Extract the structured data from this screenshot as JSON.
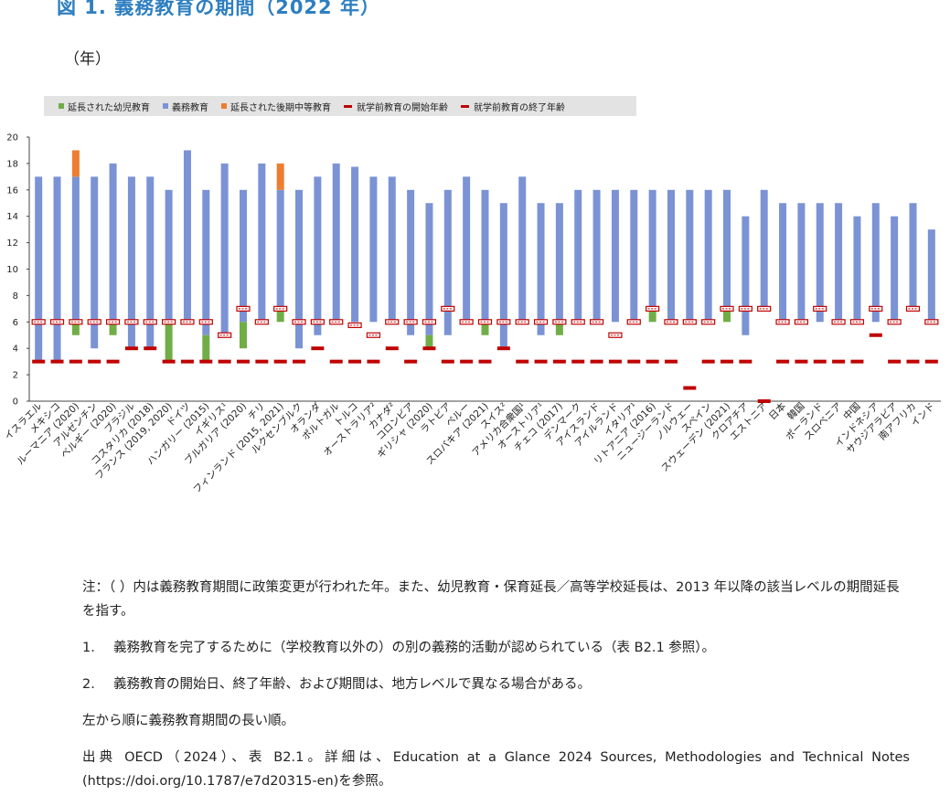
{
  "title": "図 1.  義務教育の期間（2022 年）",
  "unit_label": "（年）",
  "legend": [
    {
      "label": "延長された幼児教育",
      "color": "#70ad47",
      "kind": "box"
    },
    {
      "label": "義務教育",
      "color": "#7b93d4",
      "kind": "box"
    },
    {
      "label": "延長された後期中等教育",
      "color": "#ed7d31",
      "kind": "box"
    },
    {
      "label": "就学前教育の開始年齢",
      "color": "#c00000",
      "kind": "line"
    },
    {
      "label": "就学前教育の終了年齢",
      "color": "#c00000",
      "kind": "line"
    }
  ],
  "chart_data": {
    "type": "bar",
    "stacked": true,
    "ylim": [
      0,
      20
    ],
    "yticks": [
      0,
      2,
      4,
      6,
      8,
      10,
      12,
      14,
      16,
      18,
      20
    ],
    "categories": [
      "イスラエル",
      "メキシコ",
      "ルーマニア (2020)",
      "アルゼンチン",
      "ベルギー (2020)",
      "ブラジル",
      "コスタリカ (2018)",
      "フランス (2019, 2020)",
      "ドイツ",
      "ハンガリー (2015)",
      "イギリス¹",
      "ブルガリア (2020)",
      "チリ",
      "フィンランド (2015, 2021)",
      "ルクセンブルク",
      "オランダ",
      "ポルトガル",
      "トルコ",
      "オーストラリア²",
      "カナダ²",
      "コロンビア",
      "ギリシャ (2020)",
      "ラトビア",
      "ペルー",
      "スロバキア (2021)",
      "スイス²",
      "アメリカ合衆国¹",
      "オーストリア¹",
      "チェコ (2017)",
      "デンマーク",
      "アイスランド",
      "アイルランド",
      "イタリア¹",
      "リトアニア (2016)",
      "ニュージーランド",
      "ノルウェー",
      "スペイン",
      "スウェーデン (2021)",
      "クロアチア",
      "エストニア",
      "日本",
      "韓国",
      "ポーランド",
      "スロベニア",
      "中国",
      "インドネシア",
      "サウジアラビア",
      "南アフリカ",
      "インド"
    ],
    "compulsory_start": [
      3,
      3,
      6,
      4,
      6,
      4,
      4,
      6,
      6,
      5,
      5,
      6,
      6,
      7,
      4,
      5,
      6,
      6,
      6,
      6,
      5,
      5,
      5,
      6,
      6,
      4,
      6,
      5,
      6,
      6,
      6,
      6,
      6,
      7,
      6,
      6,
      6,
      7,
      5,
      7,
      6,
      6,
      6,
      6,
      6,
      6,
      6,
      7,
      6
    ],
    "compulsory_end": [
      17,
      17,
      17,
      17,
      18,
      17,
      17,
      16,
      19,
      16,
      18,
      16,
      18,
      16,
      16,
      17,
      18,
      17.75,
      17,
      17,
      16,
      15,
      16,
      17,
      16,
      15,
      17,
      15,
      15,
      16,
      16,
      16,
      16,
      16,
      16,
      16,
      16,
      16,
      14,
      16,
      15,
      15,
      15,
      15,
      14,
      15,
      14,
      15,
      13
    ],
    "extended_ece_from": [
      null,
      null,
      5,
      null,
      5,
      null,
      4,
      3,
      null,
      3,
      null,
      4,
      null,
      6,
      null,
      null,
      null,
      null,
      null,
      null,
      null,
      4,
      null,
      null,
      5,
      null,
      null,
      null,
      5,
      null,
      null,
      null,
      null,
      6,
      null,
      null,
      null,
      6,
      null,
      null,
      null,
      null,
      null,
      null,
      null,
      null,
      null,
      null,
      null
    ],
    "extended_upper_to": [
      null,
      null,
      19,
      null,
      null,
      null,
      null,
      null,
      null,
      null,
      null,
      null,
      null,
      18,
      null,
      null,
      null,
      null,
      null,
      null,
      null,
      null,
      null,
      null,
      null,
      null,
      null,
      null,
      null,
      null,
      null,
      null,
      null,
      null,
      null,
      null,
      null,
      null,
      null,
      null,
      null,
      null,
      null,
      null,
      null,
      null,
      null,
      null,
      null
    ],
    "ece_start_age": [
      3,
      3,
      3,
      3,
      3,
      4,
      4,
      3,
      3,
      3,
      3,
      3,
      3,
      3,
      3,
      4,
      3,
      3,
      3,
      4,
      3,
      4,
      3,
      3,
      3,
      4,
      3,
      3,
      3,
      3,
      3,
      3,
      3,
      3,
      3,
      1,
      3,
      3,
      3,
      0,
      3,
      3,
      3,
      3,
      3,
      5,
      3,
      3,
      3
    ],
    "ece_end_age": [
      6,
      6,
      6,
      6,
      6,
      6,
      6,
      6,
      6,
      6,
      5,
      7,
      6,
      7,
      6,
      6,
      6,
      5.75,
      5,
      6,
      6,
      6,
      7,
      6,
      6,
      6,
      6,
      6,
      6,
      6,
      6,
      5,
      6,
      7,
      6,
      6,
      6,
      7,
      7,
      7,
      6,
      6,
      7,
      6,
      6,
      7,
      6,
      7,
      6
    ],
    "series_colors": {
      "compulsory": "#7b93d4",
      "extended_ece": "#70ad47",
      "extended_upper": "#ed7d31",
      "age_marker": "#c00000"
    }
  },
  "notes": {
    "main": "注：（ ）内は義務教育期間に政策変更が行われた年。また、幼児教育・保育延長／高等学校延長は、2013 年以降の該当レベルの期間延長を指す。",
    "n1_num": "1.",
    "n1": "義務教育を完了するために（学校教育以外の）の別の義務的活動が認められている（表 B2.1 参照）。",
    "n2_num": "2.",
    "n2": "義務教育の開始日、終了年齢、および期間は、地方レベルで異なる場合がある。",
    "order": "左から順に義務教育期間の長い順。",
    "source": "出典  OECD（2024）、表  B2.1。詳細は、Education at a Glance 2024 Sources, Methodologies and Technical Notes (https://doi.org/10.1787/e7d20315-en)を参照。"
  }
}
